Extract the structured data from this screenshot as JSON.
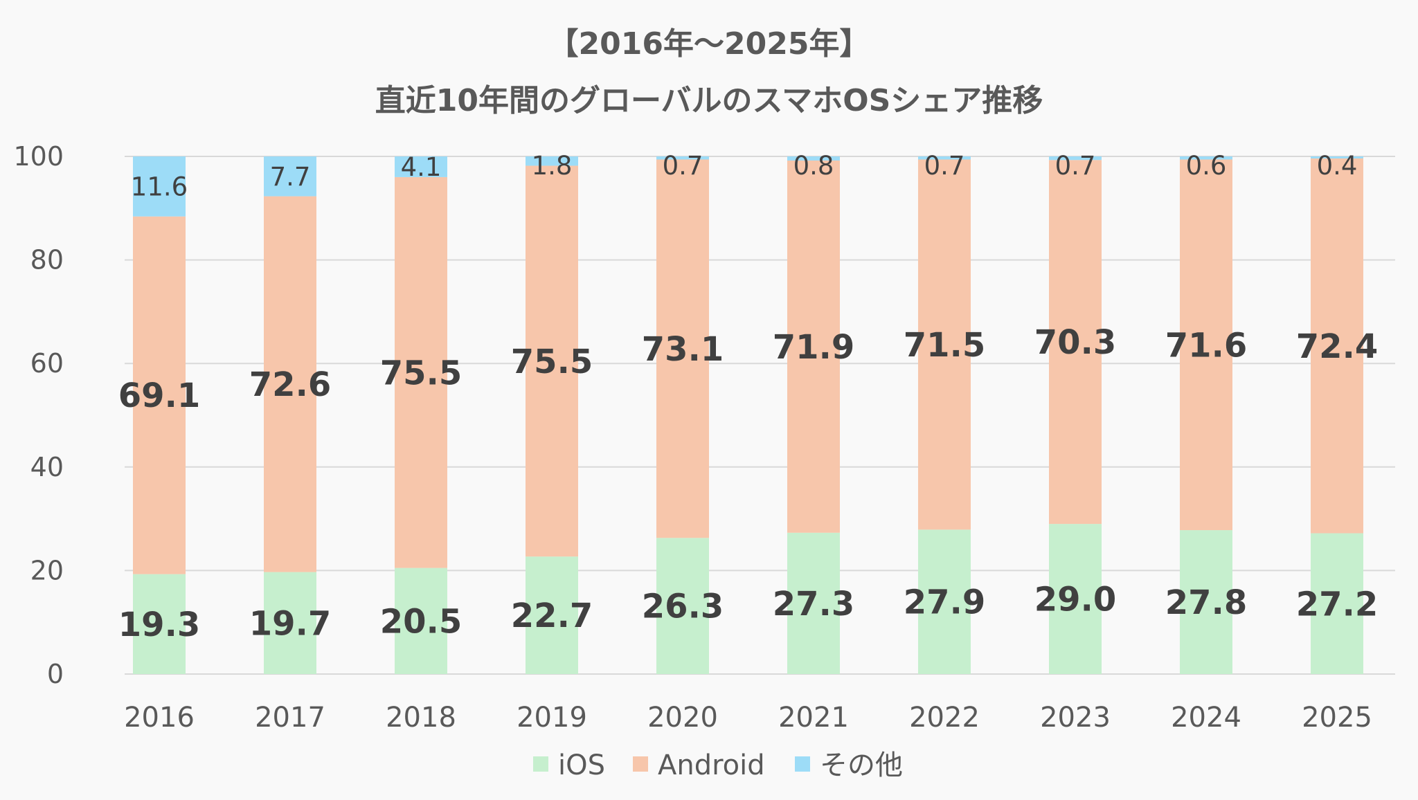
{
  "chart_data": {
    "type": "bar",
    "stacked": true,
    "title_lines": [
      "【2016年～2025年】",
      "直近10年間のグローバルのスマホOSシェア推移"
    ],
    "categories": [
      "2016",
      "2017",
      "2018",
      "2019",
      "2020",
      "2021",
      "2022",
      "2023",
      "2024",
      "2025"
    ],
    "series": [
      {
        "name": "iOS",
        "color": "#c6efce",
        "label_style": "bold",
        "values": [
          19.3,
          19.7,
          20.5,
          22.7,
          26.3,
          27.3,
          27.9,
          29.0,
          27.8,
          27.2
        ],
        "labels": [
          "19.3",
          "19.7",
          "20.5",
          "22.7",
          "26.3",
          "27.3",
          "27.9",
          "29.0",
          "27.8",
          "27.2"
        ]
      },
      {
        "name": "Android",
        "color": "#f7c6ab",
        "label_style": "bold",
        "values": [
          69.1,
          72.6,
          75.5,
          75.5,
          73.1,
          71.9,
          71.5,
          70.3,
          71.6,
          72.4
        ],
        "labels": [
          "69.1",
          "72.6",
          "75.5",
          "75.5",
          "73.1",
          "71.9",
          "71.5",
          "70.3",
          "71.6",
          "72.4"
        ]
      },
      {
        "name": "その他",
        "color": "#9ddcf7",
        "label_style": "normal",
        "values": [
          11.6,
          7.7,
          4.1,
          1.8,
          0.7,
          0.8,
          0.7,
          0.7,
          0.6,
          0.4
        ],
        "labels": [
          "11.6",
          "7.7",
          "4.1",
          "1.8",
          "0.7",
          "0.8",
          "0.7",
          "0.7",
          "0.6",
          "0.4"
        ]
      }
    ],
    "yticks": [
      "0",
      "20",
      "40",
      "60",
      "80",
      "100"
    ],
    "ylim": [
      0,
      100
    ],
    "xlabel": "",
    "ylabel": "",
    "grid": true,
    "legend_position": "bottom"
  }
}
